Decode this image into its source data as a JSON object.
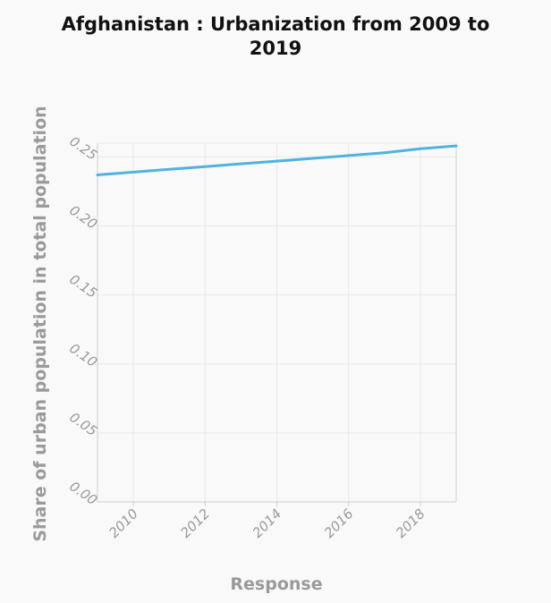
{
  "chart_data": {
    "type": "line",
    "title": "Afghanistan : Urbanization from 2009 to 2019",
    "title_lines": [
      "Afghanistan : Urbanization from 2009 to",
      "2019"
    ],
    "xlabel": "Response",
    "ylabel": "Share of urban population in total population",
    "xlim": [
      2009,
      2019
    ],
    "ylim": [
      0,
      0.26
    ],
    "x_ticks": [
      2010,
      2012,
      2014,
      2016,
      2018
    ],
    "y_ticks": [
      "0.00",
      "0.05",
      "0.10",
      "0.15",
      "0.20",
      "0.25"
    ],
    "grid": true,
    "series": [
      {
        "x": [
          2009,
          2010,
          2011,
          2012,
          2013,
          2014,
          2015,
          2016,
          2017,
          2018,
          2019
        ],
        "values": [
          0.237,
          0.239,
          0.241,
          0.243,
          0.245,
          0.247,
          0.249,
          0.251,
          0.253,
          0.256,
          0.258
        ],
        "color": "#4fb3e0"
      }
    ]
  }
}
